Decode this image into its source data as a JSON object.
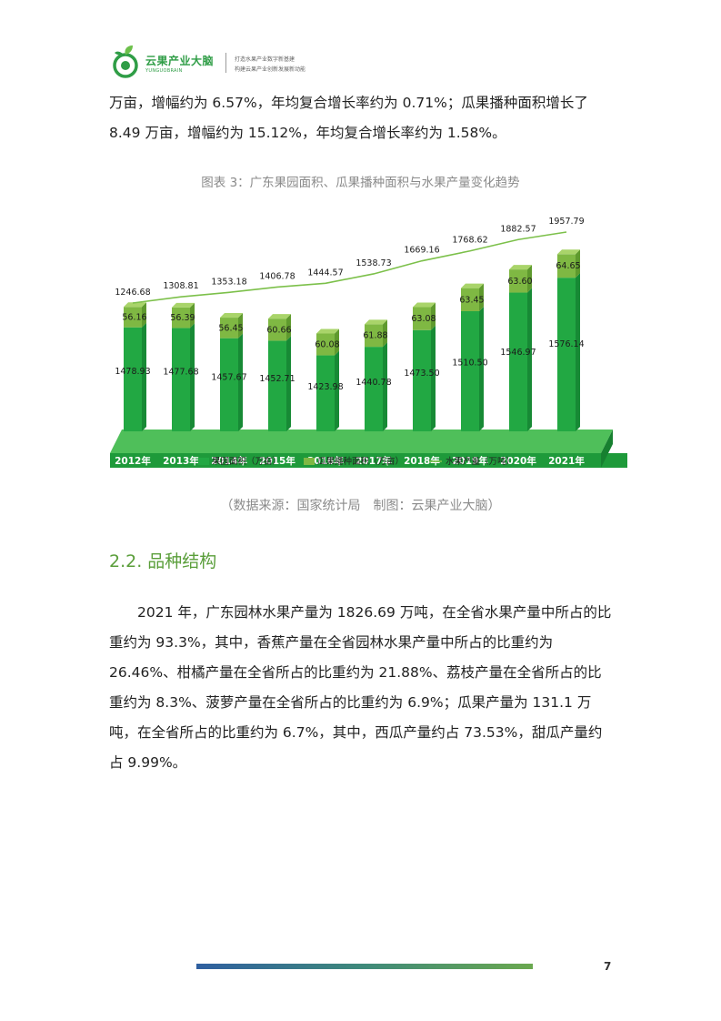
{
  "header": {
    "logo_name": "云果产业大脑",
    "logo_sub": "YUNGUOBRAIN",
    "slogan_line1": "打造水果产业数字新基建",
    "slogan_line2": "构建云果产业创新发展新动能",
    "brand_color": "#2f9d46"
  },
  "intro": {
    "line1": "万亩，增幅约为 6.57%，年均复合增长率约为 0.71%；瓜果播种面积增长了",
    "line2": "8.49 万亩，增幅约为 15.12%，年均复合增长率约为 1.58%。"
  },
  "figure": {
    "caption": "图表 3：广东果园面积、瓜果播种面积与水果产量变化趋势",
    "source": "（数据来源：国家统计局　制图：云果产业大脑）"
  },
  "chart_data": {
    "type": "bar",
    "stacked": true,
    "categories": [
      "2012年",
      "2013年",
      "2014年",
      "2015年",
      "2016年",
      "2017年",
      "2018年",
      "2019年",
      "2020年",
      "2021年"
    ],
    "series": [
      {
        "name": "果园面积（万亩）",
        "type": "bar",
        "color": "#22a843",
        "values": [
          1478.93,
          1477.68,
          1457.67,
          1452.71,
          1423.98,
          1440.78,
          1473.5,
          1510.5,
          1546.97,
          1576.14
        ]
      },
      {
        "name": "瓜果播种面积（万亩）",
        "type": "bar",
        "color": "#7fb843",
        "values": [
          56.16,
          56.39,
          56.45,
          60.66,
          60.08,
          61.88,
          63.08,
          63.45,
          63.6,
          64.65
        ]
      },
      {
        "name": "水果产量（万吨）",
        "type": "line",
        "color": "#7cc04a",
        "values": [
          1246.68,
          1308.81,
          1353.18,
          1406.78,
          1444.57,
          1538.73,
          1669.16,
          1768.62,
          1882.57,
          1957.79
        ]
      }
    ],
    "legend_position": "bottom",
    "grid": false
  },
  "section": {
    "title": "2.2. 品种结构"
  },
  "body": {
    "line1": "2021 年，广东园林水果产量为 1826.69 万吨，在全省水果产量中所占的比",
    "line2": "重约为 93.3%，其中，香蕉产量在全省园林水果产量中所占的比重约为",
    "line3": "26.46%、柑橘产量在全省所占的比重约为 21.88%、荔枝产量在全省所占的比",
    "line4": "重约为 8.3%、菠萝产量在全省所占的比重约为 6.9%；瓜果产量为 131.1 万",
    "line5": "吨，在全省所占的比重约为 6.7%，其中，西瓜产量约占 73.53%，甜瓜产量约",
    "line6": "占 9.99%。"
  },
  "footer": {
    "page_number": "7"
  }
}
